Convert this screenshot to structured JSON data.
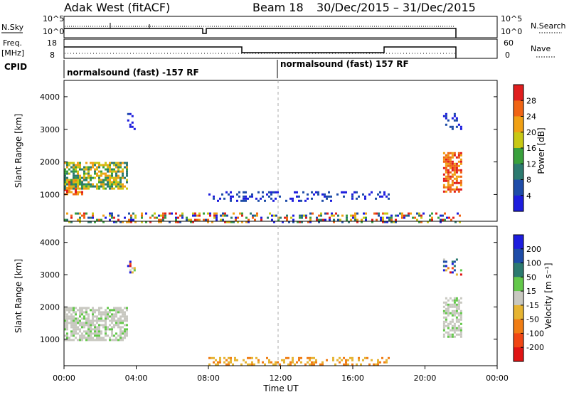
{
  "header": {
    "radar": "Adak West (fitACF)",
    "beam": "Beam 18",
    "date_range": "30/Dec/2015 – 31/Dec/2015"
  },
  "summary": {
    "nsky_label": "N.Sky",
    "nsky_ticks": [
      "10^5",
      "10^0"
    ],
    "nsky_right_ticks": [
      "10^5",
      "10^0"
    ],
    "nsearch_label": "N.Search",
    "freq_label_1": "Freq.",
    "freq_label_2": "[MHz]",
    "freq_ticks": [
      "18",
      "8"
    ],
    "nave_ticks": [
      "60",
      "0"
    ],
    "nave_label": "Nave",
    "cpid_label": "CPID",
    "cpid_segments": [
      "normalsound (fast) -157 RF",
      "normalsound (fast) 157 RF"
    ]
  },
  "time_axis": {
    "label": "Time UT",
    "ticks": [
      "00:00",
      "04:00",
      "08:00",
      "12:00",
      "16:00",
      "20:00",
      "00:00"
    ]
  },
  "power_colorbar": {
    "label": "Power [dB]",
    "ticks": [
      "4",
      "8",
      "12",
      "16",
      "20",
      "24",
      "28"
    ],
    "colors": [
      "#1d1dde",
      "#1e4ca8",
      "#2c7a6f",
      "#39a03c",
      "#c8c814",
      "#f0a014",
      "#f06414",
      "#e01e1e"
    ]
  },
  "velocity_colorbar": {
    "label": "Velocity [m s⁻¹]",
    "ticks": [
      "200",
      "100",
      "50",
      "15",
      "-15",
      "-50",
      "-100",
      "-200"
    ],
    "colors": [
      "#1d1dde",
      "#1e4ca8",
      "#2c7a6f",
      "#63c84a",
      "#c8c8c0",
      "#e6b432",
      "#f07d14",
      "#f04614",
      "#e01414"
    ]
  },
  "chart_data": [
    {
      "type": "heatmap",
      "title": "Power",
      "xlabel": "Time UT",
      "ylabel": "Slant Range [km]",
      "colorbar_label": "Power [dB]",
      "xlim": [
        "00:00",
        "24:00"
      ],
      "ylim": [
        180,
        4500
      ],
      "yticks": [
        1000,
        2000,
        3000,
        4000
      ],
      "data_end": "22:00",
      "regions": [
        {
          "t_start": 0.0,
          "t_end": 1.0,
          "r_start": 1000,
          "r_end": 1500,
          "level": "high"
        },
        {
          "t_start": 0.0,
          "t_end": 3.5,
          "r_start": 1200,
          "r_end": 2000,
          "level": "medium"
        },
        {
          "t_start": 21.0,
          "t_end": 22.0,
          "r_start": 1100,
          "r_end": 2300,
          "level": "high"
        },
        {
          "t_start": 8.0,
          "t_end": 18.0,
          "r_start": 800,
          "r_end": 1100,
          "level": "low"
        },
        {
          "t_start": 0.0,
          "t_end": 22.0,
          "r_start": 180,
          "r_end": 450,
          "level": "mixed"
        },
        {
          "t_start": 3.5,
          "t_end": 4.0,
          "r_start": 3000,
          "r_end": 3500,
          "level": "low"
        },
        {
          "t_start": 21.0,
          "t_end": 22.0,
          "r_start": 3000,
          "r_end": 3500,
          "level": "low"
        }
      ]
    },
    {
      "type": "heatmap",
      "title": "Velocity",
      "xlabel": "Time UT",
      "ylabel": "Slant Range [km]",
      "colorbar_label": "Velocity [m s⁻¹]",
      "xlim": [
        "00:00",
        "24:00"
      ],
      "ylim": [
        180,
        4500
      ],
      "yticks": [
        1000,
        2000,
        3000,
        4000
      ],
      "data_end": "22:00",
      "regions": [
        {
          "t_start": 0.0,
          "t_end": 3.5,
          "r_start": 1000,
          "r_end": 2000,
          "level": "near-zero"
        },
        {
          "t_start": 21.0,
          "t_end": 22.0,
          "r_start": 1100,
          "r_end": 2300,
          "level": "near-zero"
        },
        {
          "t_start": 8.0,
          "t_end": 18.0,
          "r_start": 200,
          "r_end": 450,
          "level": "negative"
        },
        {
          "t_start": 3.5,
          "t_end": 4.0,
          "r_start": 3000,
          "r_end": 3500,
          "level": "mixed"
        },
        {
          "t_start": 21.0,
          "t_end": 22.0,
          "r_start": 3000,
          "r_end": 3500,
          "level": "mixed"
        }
      ]
    }
  ]
}
